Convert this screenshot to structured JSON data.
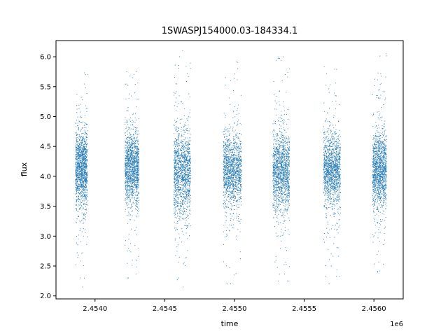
{
  "chart_data": {
    "type": "scatter",
    "title": "1SWASPJ154000.03-184334.1",
    "xlabel": "time",
    "ylabel": "flux",
    "x_offset_label": "1e6",
    "xlim": [
      2453720,
      2456210
    ],
    "ylim": [
      1.95,
      6.27
    ],
    "x_ticks": [
      {
        "value": 2454000,
        "label": "2.4540"
      },
      {
        "value": 2454500,
        "label": "2.4545"
      },
      {
        "value": 2455000,
        "label": "2.4550"
      },
      {
        "value": 2455500,
        "label": "2.4555"
      },
      {
        "value": 2456000,
        "label": "2.4560"
      }
    ],
    "y_ticks": [
      {
        "value": 2.0,
        "label": "2.0"
      },
      {
        "value": 2.5,
        "label": "2.5"
      },
      {
        "value": 3.0,
        "label": "3.0"
      },
      {
        "value": 3.5,
        "label": "3.5"
      },
      {
        "value": 4.0,
        "label": "4.0"
      },
      {
        "value": 4.5,
        "label": "4.5"
      },
      {
        "value": 5.0,
        "label": "5.0"
      },
      {
        "value": 5.5,
        "label": "5.5"
      },
      {
        "value": 6.0,
        "label": "6.0"
      }
    ],
    "grid": false,
    "legend": "none",
    "marker_color": "#1f77b4",
    "series": [
      {
        "season_clusters": [
          {
            "x_start": 2453860,
            "x_end": 2453945,
            "center": 4.15,
            "spread": 0.3,
            "min": 2.15,
            "max": 5.75
          },
          {
            "x_start": 2454215,
            "x_end": 2454315,
            "center": 4.15,
            "spread": 0.3,
            "min": 2.15,
            "max": 5.75
          },
          {
            "x_start": 2454565,
            "x_end": 2454685,
            "center": 4.05,
            "spread": 0.35,
            "min": 2.15,
            "max": 6.1
          },
          {
            "x_start": 2454920,
            "x_end": 2455050,
            "center": 4.1,
            "spread": 0.3,
            "min": 2.2,
            "max": 5.95
          },
          {
            "x_start": 2455275,
            "x_end": 2455395,
            "center": 4.1,
            "spread": 0.33,
            "min": 2.25,
            "max": 6.0
          },
          {
            "x_start": 2455640,
            "x_end": 2455760,
            "center": 4.1,
            "spread": 0.3,
            "min": 2.2,
            "max": 5.85
          },
          {
            "x_start": 2455990,
            "x_end": 2456090,
            "center": 4.1,
            "spread": 0.3,
            "min": 2.3,
            "max": 6.05
          }
        ]
      }
    ]
  }
}
